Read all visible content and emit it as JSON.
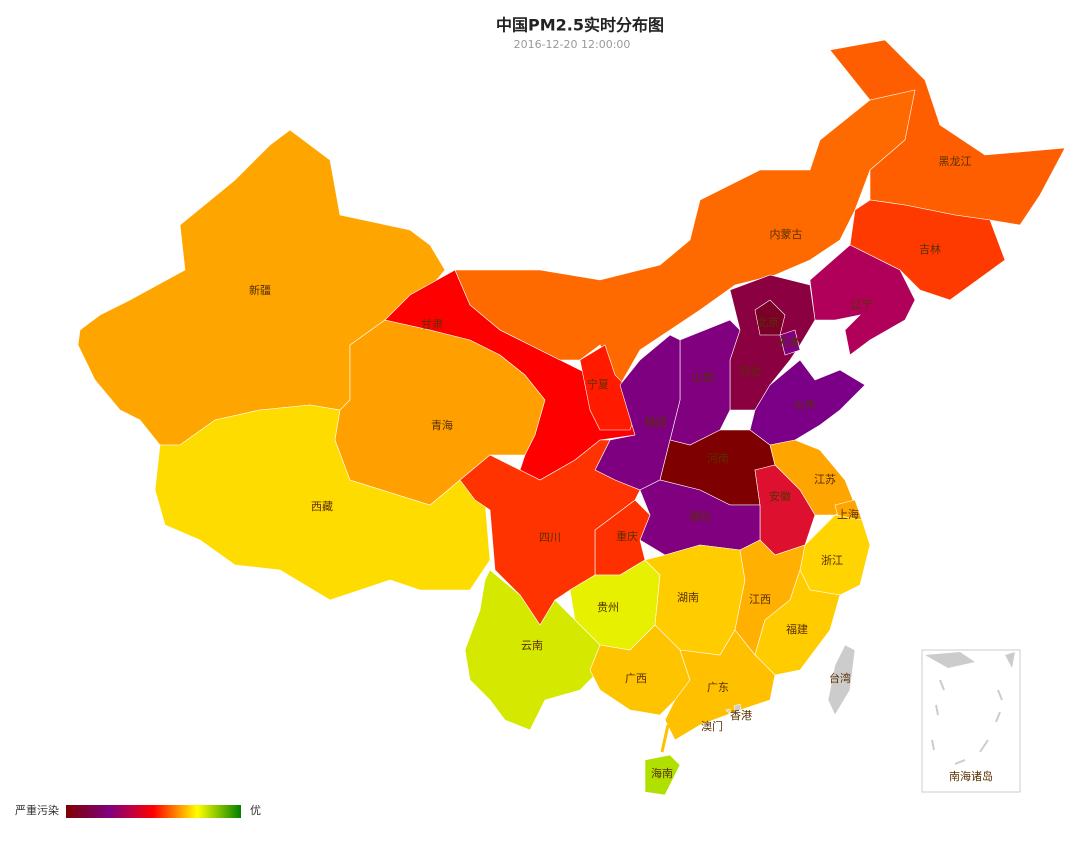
{
  "header": {
    "title": "中国PM2.5实时分布图",
    "subtitle": "2016-12-20 12:00:00"
  },
  "provinces": [
    {
      "name": "新疆",
      "color": "#ffa500"
    },
    {
      "name": "西藏",
      "color": "#ffdc00"
    },
    {
      "name": "青海",
      "color": "#ffa000"
    },
    {
      "name": "甘肃",
      "color": "#ff0000"
    },
    {
      "name": "内蒙古",
      "color": "#ff6a00"
    },
    {
      "name": "黑龙江",
      "color": "#ff5e00"
    },
    {
      "name": "吉林",
      "color": "#ff3a00"
    },
    {
      "name": "辽宁",
      "color": "#b0005a"
    },
    {
      "name": "河北",
      "color": "#8b0040"
    },
    {
      "name": "北京",
      "color": "#7a0028"
    },
    {
      "name": "天津",
      "color": "#800080"
    },
    {
      "name": "山西",
      "color": "#800080"
    },
    {
      "name": "山东",
      "color": "#7b0087"
    },
    {
      "name": "宁夏",
      "color": "#ff1a00"
    },
    {
      "name": "陕西",
      "color": "#7e0080"
    },
    {
      "name": "河南",
      "color": "#7f0000"
    },
    {
      "name": "江苏",
      "color": "#ffa500"
    },
    {
      "name": "上海",
      "color": "#ffa500"
    },
    {
      "name": "安徽",
      "color": "#dd1030"
    },
    {
      "name": "湖北",
      "color": "#800080"
    },
    {
      "name": "重庆",
      "color": "#ff3000"
    },
    {
      "name": "四川",
      "color": "#ff3300"
    },
    {
      "name": "浙江",
      "color": "#ffd400"
    },
    {
      "name": "贵州",
      "color": "#e6f000"
    },
    {
      "name": "湖南",
      "color": "#ffcc00"
    },
    {
      "name": "江西",
      "color": "#ffb000"
    },
    {
      "name": "福建",
      "color": "#ffcc00"
    },
    {
      "name": "云南",
      "color": "#d4e800"
    },
    {
      "name": "广西",
      "color": "#ffc400"
    },
    {
      "name": "广东",
      "color": "#ffc000"
    },
    {
      "name": "台湾",
      "color": "#cccccc"
    },
    {
      "name": "香港",
      "color": "#cccccc"
    },
    {
      "name": "澳门",
      "color": "#cccccc"
    },
    {
      "name": "海南",
      "color": "#b0e000"
    }
  ],
  "legend": {
    "high_label": "严重污染",
    "low_label": "优",
    "colors": [
      "#7f0000",
      "#800080",
      "#ff0000",
      "#ffff00",
      "#008000"
    ]
  },
  "inset": {
    "label": "南海诸岛"
  }
}
